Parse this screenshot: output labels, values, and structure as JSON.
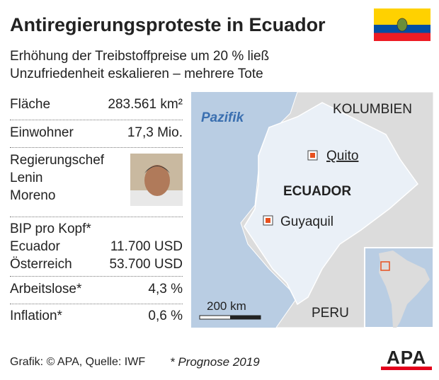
{
  "header": {
    "title": "Antiregierungsproteste in Ecuador",
    "subtitle_lines": [
      "Erhöhung der Treibstoffpreise um 20 % ließ",
      "Unzufriedenheit eskalieren – mehrere Tote"
    ]
  },
  "facts": {
    "area": {
      "label": "Fläche",
      "value": "283.561 km²"
    },
    "population": {
      "label": "Einwohner",
      "value": "17,3 Mio."
    },
    "head_of_government": {
      "label_lines": [
        "Regierungschef",
        "Lenin",
        "Moreno"
      ]
    },
    "gdp": {
      "label": "BIP pro Kopf*",
      "rows": [
        [
          "Ecuador",
          "11.700 USD"
        ],
        [
          "Österreich",
          "53.700 USD"
        ]
      ]
    },
    "unemployment": {
      "label": "Arbeitslose*",
      "value": "4,3 %"
    },
    "inflation": {
      "label": "Inflation*",
      "value": "0,6 %"
    }
  },
  "map": {
    "ocean": "Pazifik",
    "neighbors": [
      "KOLUMBIEN",
      "PERU"
    ],
    "country": "ECUADOR",
    "cities": [
      "Quito",
      "Guyaquil"
    ],
    "scale": "200 km"
  },
  "footer": {
    "source": "Grafik: © APA, Quelle: IWF",
    "note": "* Prognose 2019",
    "logo": "APA"
  }
}
